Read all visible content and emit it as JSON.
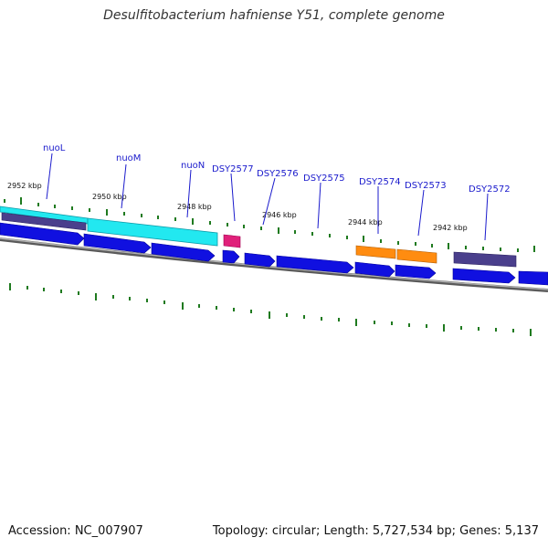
{
  "title": "Desulfitobacterium hafniense Y51, complete genome",
  "footer": {
    "accession": "Accession: NC_007907",
    "summary": "Topology: circular; Length: 5,727,534 bp; Genes: 5,137"
  },
  "colors": {
    "cds_blue": "#1010e0",
    "nuo_cyan": "#22e8f0",
    "hypothetical_purple": "#4a3f8c",
    "highlight_pink": "#e0207a",
    "highlight_orange": "#ff8c10",
    "backbone_gray": "#8a8a8a",
    "tick_green": "#1f7a1f",
    "label_blue": "#1a1acc"
  },
  "kbp_ticks": [
    "2952 kbp",
    "2950 kbp",
    "2948 kbp",
    "2946 kbp",
    "2944 kbp",
    "2942 kbp"
  ],
  "gene_labels": [
    "nuoL",
    "nuoM",
    "nuoN",
    "DSY2577",
    "DSY2576",
    "DSY2575",
    "DSY2574",
    "DSY2573",
    "DSY2572"
  ]
}
